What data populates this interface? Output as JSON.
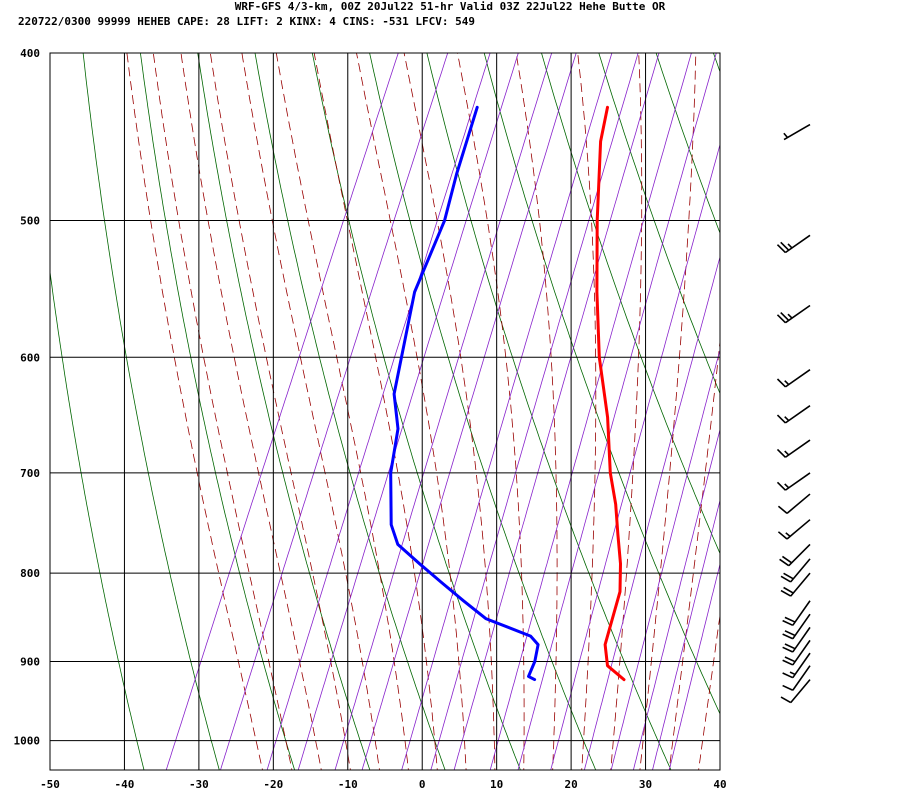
{
  "header": {
    "line1": "WRF-GFS 4/3-km, 00Z 20Jul22 51-hr Valid 03Z 22Jul22 Hehe Butte OR",
    "line2": "220722/0300 99999  HEHEB   CAPE:    28 LIFT:     2 KINX:     4 CINS:  -531 LFCV:   549"
  },
  "colors": {
    "temperature": "#ff0000",
    "dewpoint": "#0000ff",
    "dry_adiabat": "#006600",
    "moist_adiabat": "#990000",
    "mixing_ratio": "#8822cc",
    "grid": "#000000"
  },
  "chart_data": {
    "type": "line",
    "diagram": "skew-T log-P",
    "title": "",
    "xlabel": "",
    "ylabel": "",
    "x_ticks": [
      -50,
      -40,
      -30,
      -20,
      -10,
      0,
      10,
      20,
      30,
      40
    ],
    "y_ticks": [
      400,
      500,
      600,
      700,
      800,
      900,
      1000
    ],
    "xlim": [
      -50,
      40
    ],
    "ylim": [
      1040,
      400
    ],
    "y_scale": "log",
    "grid": true,
    "series": [
      {
        "key": "temperature",
        "points": [
          [
            922,
            22
          ],
          [
            905,
            19
          ],
          [
            880,
            17.5
          ],
          [
            850,
            17
          ],
          [
            820,
            16.5
          ],
          [
            790,
            15
          ],
          [
            760,
            13
          ],
          [
            730,
            11
          ],
          [
            700,
            8.5
          ],
          [
            650,
            5
          ],
          [
            600,
            0.5
          ],
          [
            550,
            -3.5
          ],
          [
            500,
            -7.5
          ],
          [
            450,
            -11.5
          ],
          [
            430,
            -12.5
          ]
        ]
      },
      {
        "key": "dewpoint",
        "points": [
          [
            922,
            10
          ],
          [
            918,
            9
          ],
          [
            900,
            9
          ],
          [
            880,
            8.5
          ],
          [
            870,
            7
          ],
          [
            850,
            0
          ],
          [
            830,
            -4
          ],
          [
            810,
            -8
          ],
          [
            790,
            -12
          ],
          [
            770,
            -16
          ],
          [
            750,
            -18
          ],
          [
            700,
            -21
          ],
          [
            660,
            -22.5
          ],
          [
            630,
            -25
          ],
          [
            550,
            -28
          ],
          [
            500,
            -28
          ],
          [
            470,
            -29
          ],
          [
            430,
            -30
          ]
        ]
      }
    ],
    "wind_barbs": [
      {
        "p": 922,
        "speed_kt": 10,
        "dir_deg": 220
      },
      {
        "p": 905,
        "speed_kt": 10,
        "dir_deg": 215
      },
      {
        "p": 890,
        "speed_kt": 15,
        "dir_deg": 215
      },
      {
        "p": 875,
        "speed_kt": 20,
        "dir_deg": 215
      },
      {
        "p": 860,
        "speed_kt": 20,
        "dir_deg": 215
      },
      {
        "p": 845,
        "speed_kt": 20,
        "dir_deg": 215
      },
      {
        "p": 830,
        "speed_kt": 20,
        "dir_deg": 215
      },
      {
        "p": 800,
        "speed_kt": 20,
        "dir_deg": 220
      },
      {
        "p": 785,
        "speed_kt": 20,
        "dir_deg": 220
      },
      {
        "p": 770,
        "speed_kt": 20,
        "dir_deg": 225
      },
      {
        "p": 745,
        "speed_kt": 15,
        "dir_deg": 230
      },
      {
        "p": 720,
        "speed_kt": 10,
        "dir_deg": 230
      },
      {
        "p": 700,
        "speed_kt": 15,
        "dir_deg": 235
      },
      {
        "p": 670,
        "speed_kt": 15,
        "dir_deg": 235
      },
      {
        "p": 640,
        "speed_kt": 15,
        "dir_deg": 235
      },
      {
        "p": 610,
        "speed_kt": 15,
        "dir_deg": 235
      },
      {
        "p": 560,
        "speed_kt": 25,
        "dir_deg": 235
      },
      {
        "p": 510,
        "speed_kt": 25,
        "dir_deg": 235
      },
      {
        "p": 440,
        "speed_kt": 5,
        "dir_deg": 240
      }
    ]
  }
}
